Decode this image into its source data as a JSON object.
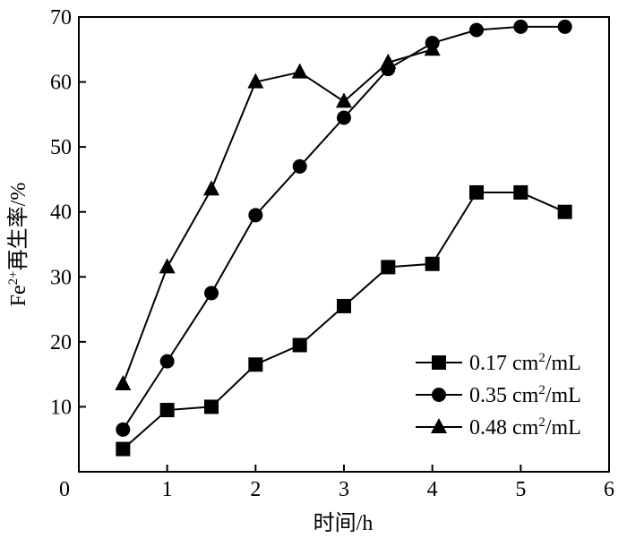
{
  "chart_data": {
    "type": "line",
    "title": "",
    "xlabel": "时间/h",
    "ylabel_main": "Fe",
    "ylabel_sup": "2+",
    "ylabel_rest": "再生率/%",
    "xlim": [
      0,
      6
    ],
    "ylim": [
      0,
      70
    ],
    "xticks": [
      0,
      1,
      2,
      3,
      4,
      5,
      6
    ],
    "yticks": [
      10,
      20,
      30,
      40,
      50,
      60,
      70
    ],
    "x_origin_label": "0",
    "grid": false,
    "legend_position": "bottom-right",
    "series": [
      {
        "name_main": "0.17 cm",
        "name_sup": "2",
        "name_rest": "/mL",
        "marker": "square",
        "x": [
          0.5,
          1,
          1.5,
          2,
          2.5,
          3,
          3.5,
          4,
          4.5,
          5,
          5.5
        ],
        "y": [
          3.5,
          9.5,
          10,
          16.5,
          19.5,
          25.5,
          31.5,
          32,
          43,
          43,
          40
        ]
      },
      {
        "name_main": "0.35 cm",
        "name_sup": "2",
        "name_rest": "/mL",
        "marker": "circle",
        "x": [
          0.5,
          1,
          1.5,
          2,
          2.5,
          3,
          3.5,
          4,
          4.5,
          5,
          5.5
        ],
        "y": [
          6.5,
          17,
          27.5,
          39.5,
          47,
          54.5,
          62,
          66,
          68,
          68.5,
          68.5
        ]
      },
      {
        "name_main": "0.48 cm",
        "name_sup": "2",
        "name_rest": "/mL",
        "marker": "triangle",
        "x": [
          0.5,
          1,
          1.5,
          2,
          2.5,
          3,
          3.5,
          4
        ],
        "y": [
          13.5,
          31.5,
          43.5,
          60,
          61.5,
          57,
          63,
          65
        ]
      }
    ],
    "colors": {
      "line": "#000000",
      "marker": "#000000"
    }
  }
}
